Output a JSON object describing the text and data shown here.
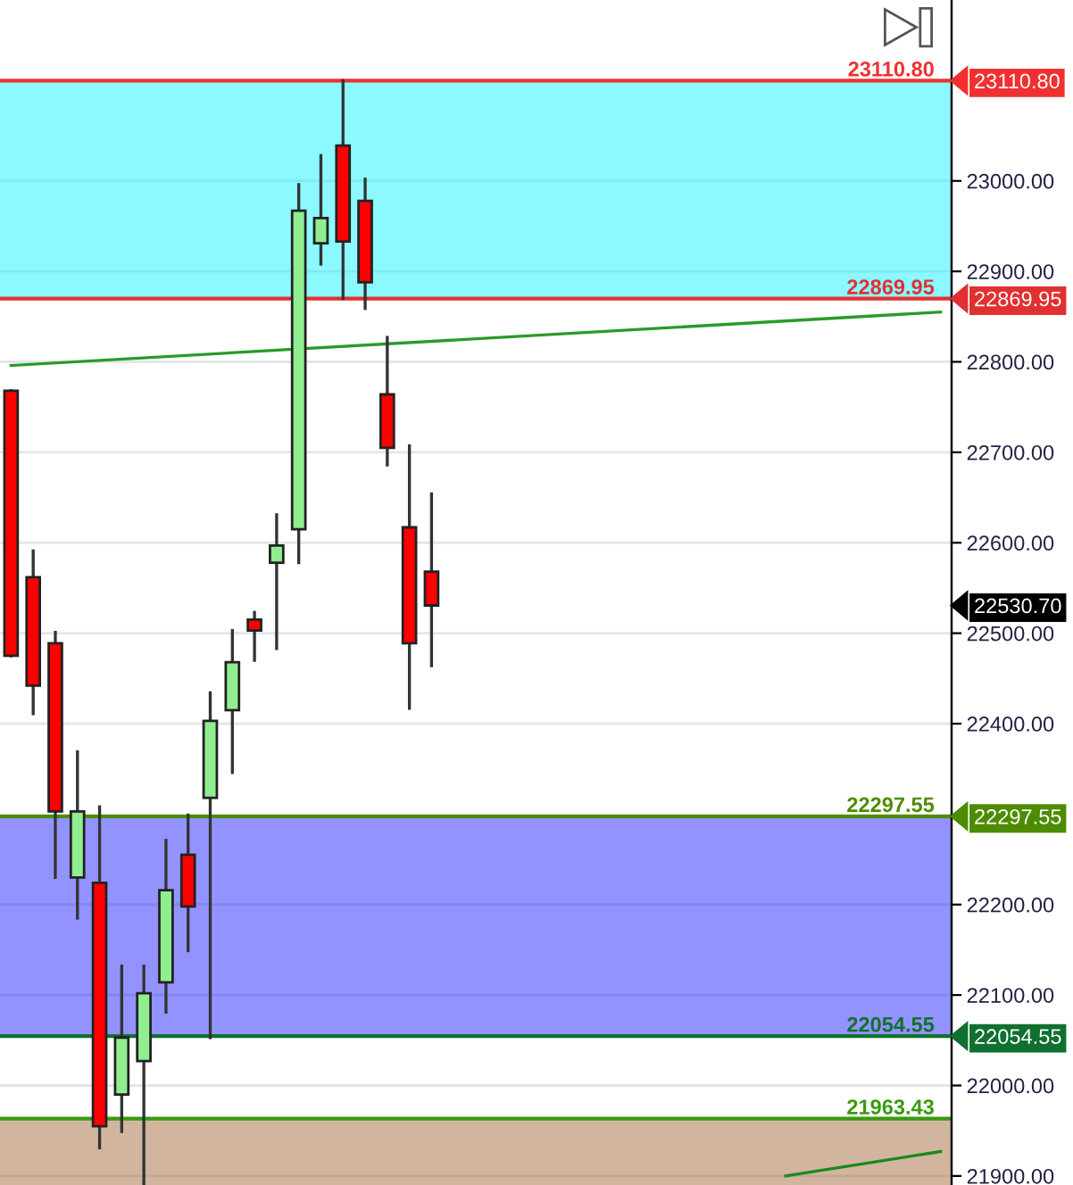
{
  "chart_data": {
    "type": "candlestick",
    "categories": [
      null,
      null,
      null,
      null,
      null,
      null,
      null,
      null,
      null,
      null,
      null,
      null,
      null,
      null,
      null,
      null,
      null,
      null,
      null,
      null,
      null,
      null,
      null,
      null,
      null,
      null,
      null,
      null,
      null,
      null,
      null,
      null,
      null,
      null,
      null,
      null,
      null,
      null,
      null,
      null,
      null,
      null,
      null
    ],
    "ohlc": [
      [
        22768,
        22768,
        22475,
        22475
      ],
      [
        22562,
        22591,
        22411,
        22442
      ],
      [
        22489,
        22501,
        22230,
        22303
      ],
      [
        22230,
        22369,
        22185,
        22303
      ],
      [
        22224,
        22308,
        21931,
        21955
      ],
      [
        21990,
        22132,
        21949,
        22053
      ],
      [
        22027,
        22132,
        21890,
        22102
      ],
      [
        22114,
        22271,
        22081,
        22216
      ],
      [
        22255,
        22299,
        22149,
        22198
      ],
      [
        22318,
        22434,
        22053,
        22403
      ],
      [
        22415,
        22503,
        22346,
        22468
      ],
      [
        22515,
        22523,
        22470,
        22503
      ],
      [
        22578,
        22631,
        22483,
        22597
      ],
      [
        22615,
        22996,
        22578,
        22967
      ],
      [
        22931,
        23028,
        22908,
        22959
      ],
      [
        23039,
        23110.8,
        22870,
        22933
      ],
      [
        22978,
        23002,
        22859,
        22888
      ],
      [
        22764,
        22827,
        22686,
        22705
      ],
      [
        22617,
        22707,
        22417,
        22489
      ],
      [
        22568,
        22654,
        22464,
        22530.7
      ],
      null,
      null,
      null,
      null,
      null,
      null,
      null,
      null,
      null,
      null,
      null,
      null,
      null,
      null,
      null,
      null,
      null,
      null,
      null,
      null,
      null,
      null,
      null
    ],
    "colors": [
      "#ff0000",
      "#ff0000",
      "#ff0000",
      "#90ee90",
      "#ff0000",
      "#90ee90",
      "#90ee90",
      "#90ee90",
      "#ff0000",
      "#90ee90",
      "#90ee90",
      "#ff0000",
      "#90ee90",
      "#90ee90",
      "#90ee90",
      "#ff0000",
      "#ff0000",
      "#ff0000",
      "#ff0000",
      "#ff0000",
      null,
      null,
      null,
      null,
      null,
      null,
      null,
      null,
      null,
      null,
      null,
      null,
      null,
      null,
      null,
      null,
      null,
      null,
      null,
      null,
      null,
      null,
      null
    ],
    "series": [
      {
        "type": "line",
        "color": "#2a9a2a",
        "values": [
          22796,
          null,
          null,
          null,
          null,
          null,
          null,
          null,
          null,
          null,
          null,
          null,
          null,
          null,
          null,
          null,
          null,
          null,
          null,
          null,
          null,
          null,
          null,
          null,
          null,
          null,
          null,
          null,
          null,
          null,
          null,
          null,
          null,
          null,
          null,
          null,
          null,
          null,
          null,
          null,
          null,
          null,
          22855
        ]
      },
      {
        "type": "line",
        "color": "#1a8a1a",
        "values": [
          null,
          null,
          null,
          null,
          null,
          null,
          null,
          null,
          null,
          null,
          null,
          null,
          null,
          null,
          null,
          null,
          null,
          null,
          null,
          null,
          null,
          null,
          null,
          null,
          null,
          null,
          null,
          null,
          null,
          null,
          null,
          null,
          null,
          null,
          null,
          21900,
          null,
          null,
          null,
          null,
          null,
          null,
          21927
        ]
      }
    ],
    "bands": [
      {
        "axis": "y",
        "from": 22869.95,
        "to": 23110.8,
        "color": "#00f0ff"
      },
      {
        "axis": "y",
        "from": 22054.55,
        "to": 22297.55,
        "color": "#1010ff"
      },
      {
        "axis": "y",
        "from": 21890,
        "to": 21963.43,
        "color": "#9c5a2a"
      }
    ],
    "ref_lines": [
      {
        "axis": "y",
        "value": 23110.8,
        "label": "23110.80",
        "color": "#f03030"
      },
      {
        "axis": "y",
        "value": 22869.95,
        "label": "22869.95",
        "color": "#e03030"
      },
      {
        "axis": "y",
        "value": 22297.55,
        "label": "22297.55",
        "color": "#4d8c00"
      },
      {
        "axis": "y",
        "value": 22054.55,
        "label": "22054.55",
        "color": "#107030"
      },
      {
        "axis": "y",
        "value": 21963.43,
        "label": "21963.43",
        "color": "#3a9a10"
      }
    ],
    "y2lim": [
      21890,
      23200
    ],
    "y2ticks": [
      {
        "value": 23110.8,
        "label": "23110.80"
      },
      {
        "value": 22869.95,
        "label": "22869.95"
      },
      {
        "value": 22530.7,
        "label": "22530.70"
      },
      {
        "value": 22297.55,
        "label": "22297.55"
      },
      {
        "value": 22054.55,
        "label": "22054.55"
      }
    ],
    "ylim": [
      21890,
      23200
    ],
    "yticks": [
      {
        "value": 21900,
        "label": "21900.00"
      },
      {
        "value": 22000,
        "label": "22000.00"
      },
      {
        "value": 22100,
        "label": "22100.00"
      },
      {
        "value": 22200,
        "label": "22200.00"
      },
      {
        "value": 22400,
        "label": "22400.00"
      },
      {
        "value": 22500,
        "label": "22500.00"
      },
      {
        "value": 22600,
        "label": "22600.00"
      },
      {
        "value": 22700,
        "label": "22700.00"
      },
      {
        "value": 22800,
        "label": "22800.00"
      },
      {
        "value": 22900,
        "label": "22900.00"
      },
      {
        "value": 23000,
        "label": "23000.00"
      }
    ],
    "grid": "y"
  }
}
